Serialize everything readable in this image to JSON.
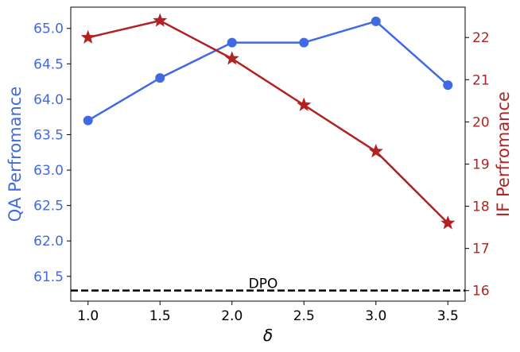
{
  "chart_data": {
    "type": "line",
    "x": [
      1.0,
      1.5,
      2.0,
      2.5,
      3.0,
      3.5
    ],
    "x_ticks": [
      "1.0",
      "1.5",
      "2.0",
      "2.5",
      "3.0",
      "3.5"
    ],
    "xlabel": "δ",
    "xlim": [
      0.88,
      3.62
    ],
    "left_axis": {
      "label": "QA Perfromance",
      "color": "#4169E1",
      "ylim": [
        61.15,
        65.3
      ],
      "ticks": [
        "61.5",
        "62.0",
        "62.5",
        "63.0",
        "63.5",
        "64.0",
        "64.5",
        "65.0"
      ],
      "tick_values": [
        61.5,
        62.0,
        62.5,
        63.0,
        63.5,
        64.0,
        64.5,
        65.0
      ]
    },
    "right_axis": {
      "label": "IF Perfromance",
      "color": "#B22222",
      "ylim": [
        15.75,
        22.72
      ],
      "ticks": [
        "16",
        "17",
        "18",
        "19",
        "20",
        "21",
        "22"
      ],
      "tick_values": [
        16,
        17,
        18,
        19,
        20,
        21,
        22
      ]
    },
    "series": [
      {
        "axis": "left",
        "marker": "circle",
        "color": "#4169E1",
        "values": [
          63.7,
          64.3,
          64.8,
          64.8,
          65.1,
          64.2
        ]
      },
      {
        "axis": "right",
        "marker": "star",
        "color": "#B22222",
        "values": [
          22.0,
          22.4,
          21.5,
          20.4,
          19.3,
          17.6
        ]
      }
    ],
    "reference_line": {
      "label": "DPO",
      "value": 61.3,
      "axis": "left",
      "color": "#000000",
      "style": "dashed"
    }
  }
}
